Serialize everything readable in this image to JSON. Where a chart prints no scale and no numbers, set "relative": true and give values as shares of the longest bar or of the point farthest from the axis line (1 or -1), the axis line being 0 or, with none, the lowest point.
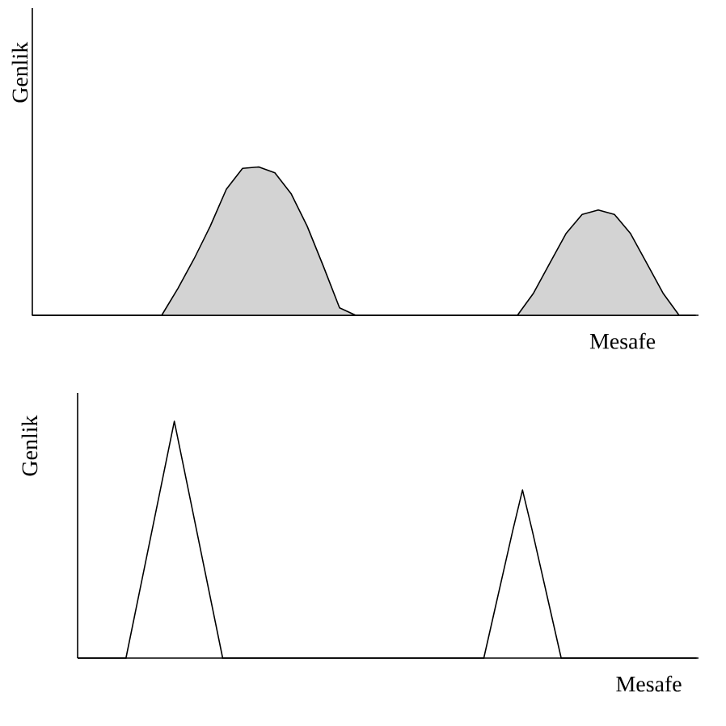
{
  "chart_data": [
    {
      "type": "area",
      "relative": true,
      "xlabel": "Mesafe",
      "ylabel": "Genlik",
      "color": "#d3d3d3",
      "categories": [
        null,
        null,
        null,
        null,
        null,
        null,
        null,
        null,
        null,
        null,
        null,
        null,
        null,
        null,
        null,
        null,
        null,
        null,
        null,
        null,
        null,
        null,
        null,
        null,
        null,
        null,
        null,
        null,
        null,
        null,
        null,
        null,
        null,
        null,
        null,
        null,
        null,
        null,
        null,
        null,
        null,
        null
      ],
      "values": [
        0,
        0,
        0,
        0,
        0,
        0,
        0,
        0,
        0,
        0.18,
        0.38,
        0.6,
        0.85,
        0.99,
        1,
        0.96,
        0.82,
        0.6,
        0.33,
        0.05,
        0,
        0,
        0,
        0,
        0,
        0,
        0,
        0,
        0,
        0,
        0,
        0.15,
        0.35,
        0.55,
        0.68,
        0.71,
        0.68,
        0.55,
        0.35,
        0.15,
        0,
        0
      ]
    },
    {
      "type": "line",
      "relative": true,
      "xlabel": "Mesafe",
      "ylabel": "Genlik",
      "color": "#000000",
      "categories": [
        null,
        null,
        null,
        null,
        null,
        null,
        null,
        null,
        null,
        null,
        null,
        null,
        null,
        null,
        null,
        null,
        null,
        null,
        null,
        null,
        null,
        null,
        null,
        null,
        null,
        null,
        null,
        null,
        null,
        null,
        null,
        null,
        null,
        null,
        null,
        null,
        null,
        null,
        null,
        null,
        null,
        null,
        null,
        null,
        null,
        null,
        null,
        null,
        null,
        null,
        null,
        null,
        null,
        null,
        null,
        null,
        null,
        null,
        null,
        null,
        null,
        null,
        null,
        null,
        null
      ],
      "values": [
        0,
        0,
        0,
        0,
        0,
        0,
        0.2,
        0.4,
        0.6,
        0.8,
        1,
        0.8,
        0.6,
        0.4,
        0.2,
        0,
        0,
        0,
        0,
        0,
        0,
        0,
        0,
        0,
        0,
        0,
        0,
        0,
        0,
        0,
        0,
        0,
        0,
        0,
        0,
        0,
        0,
        0,
        0,
        0,
        0,
        0,
        0,
        0.18,
        0.36,
        0.54,
        0.71,
        0.54,
        0.36,
        0.18,
        0,
        0,
        0,
        0,
        0,
        0,
        0,
        0,
        0,
        0,
        0,
        0,
        0,
        0,
        0
      ]
    }
  ]
}
